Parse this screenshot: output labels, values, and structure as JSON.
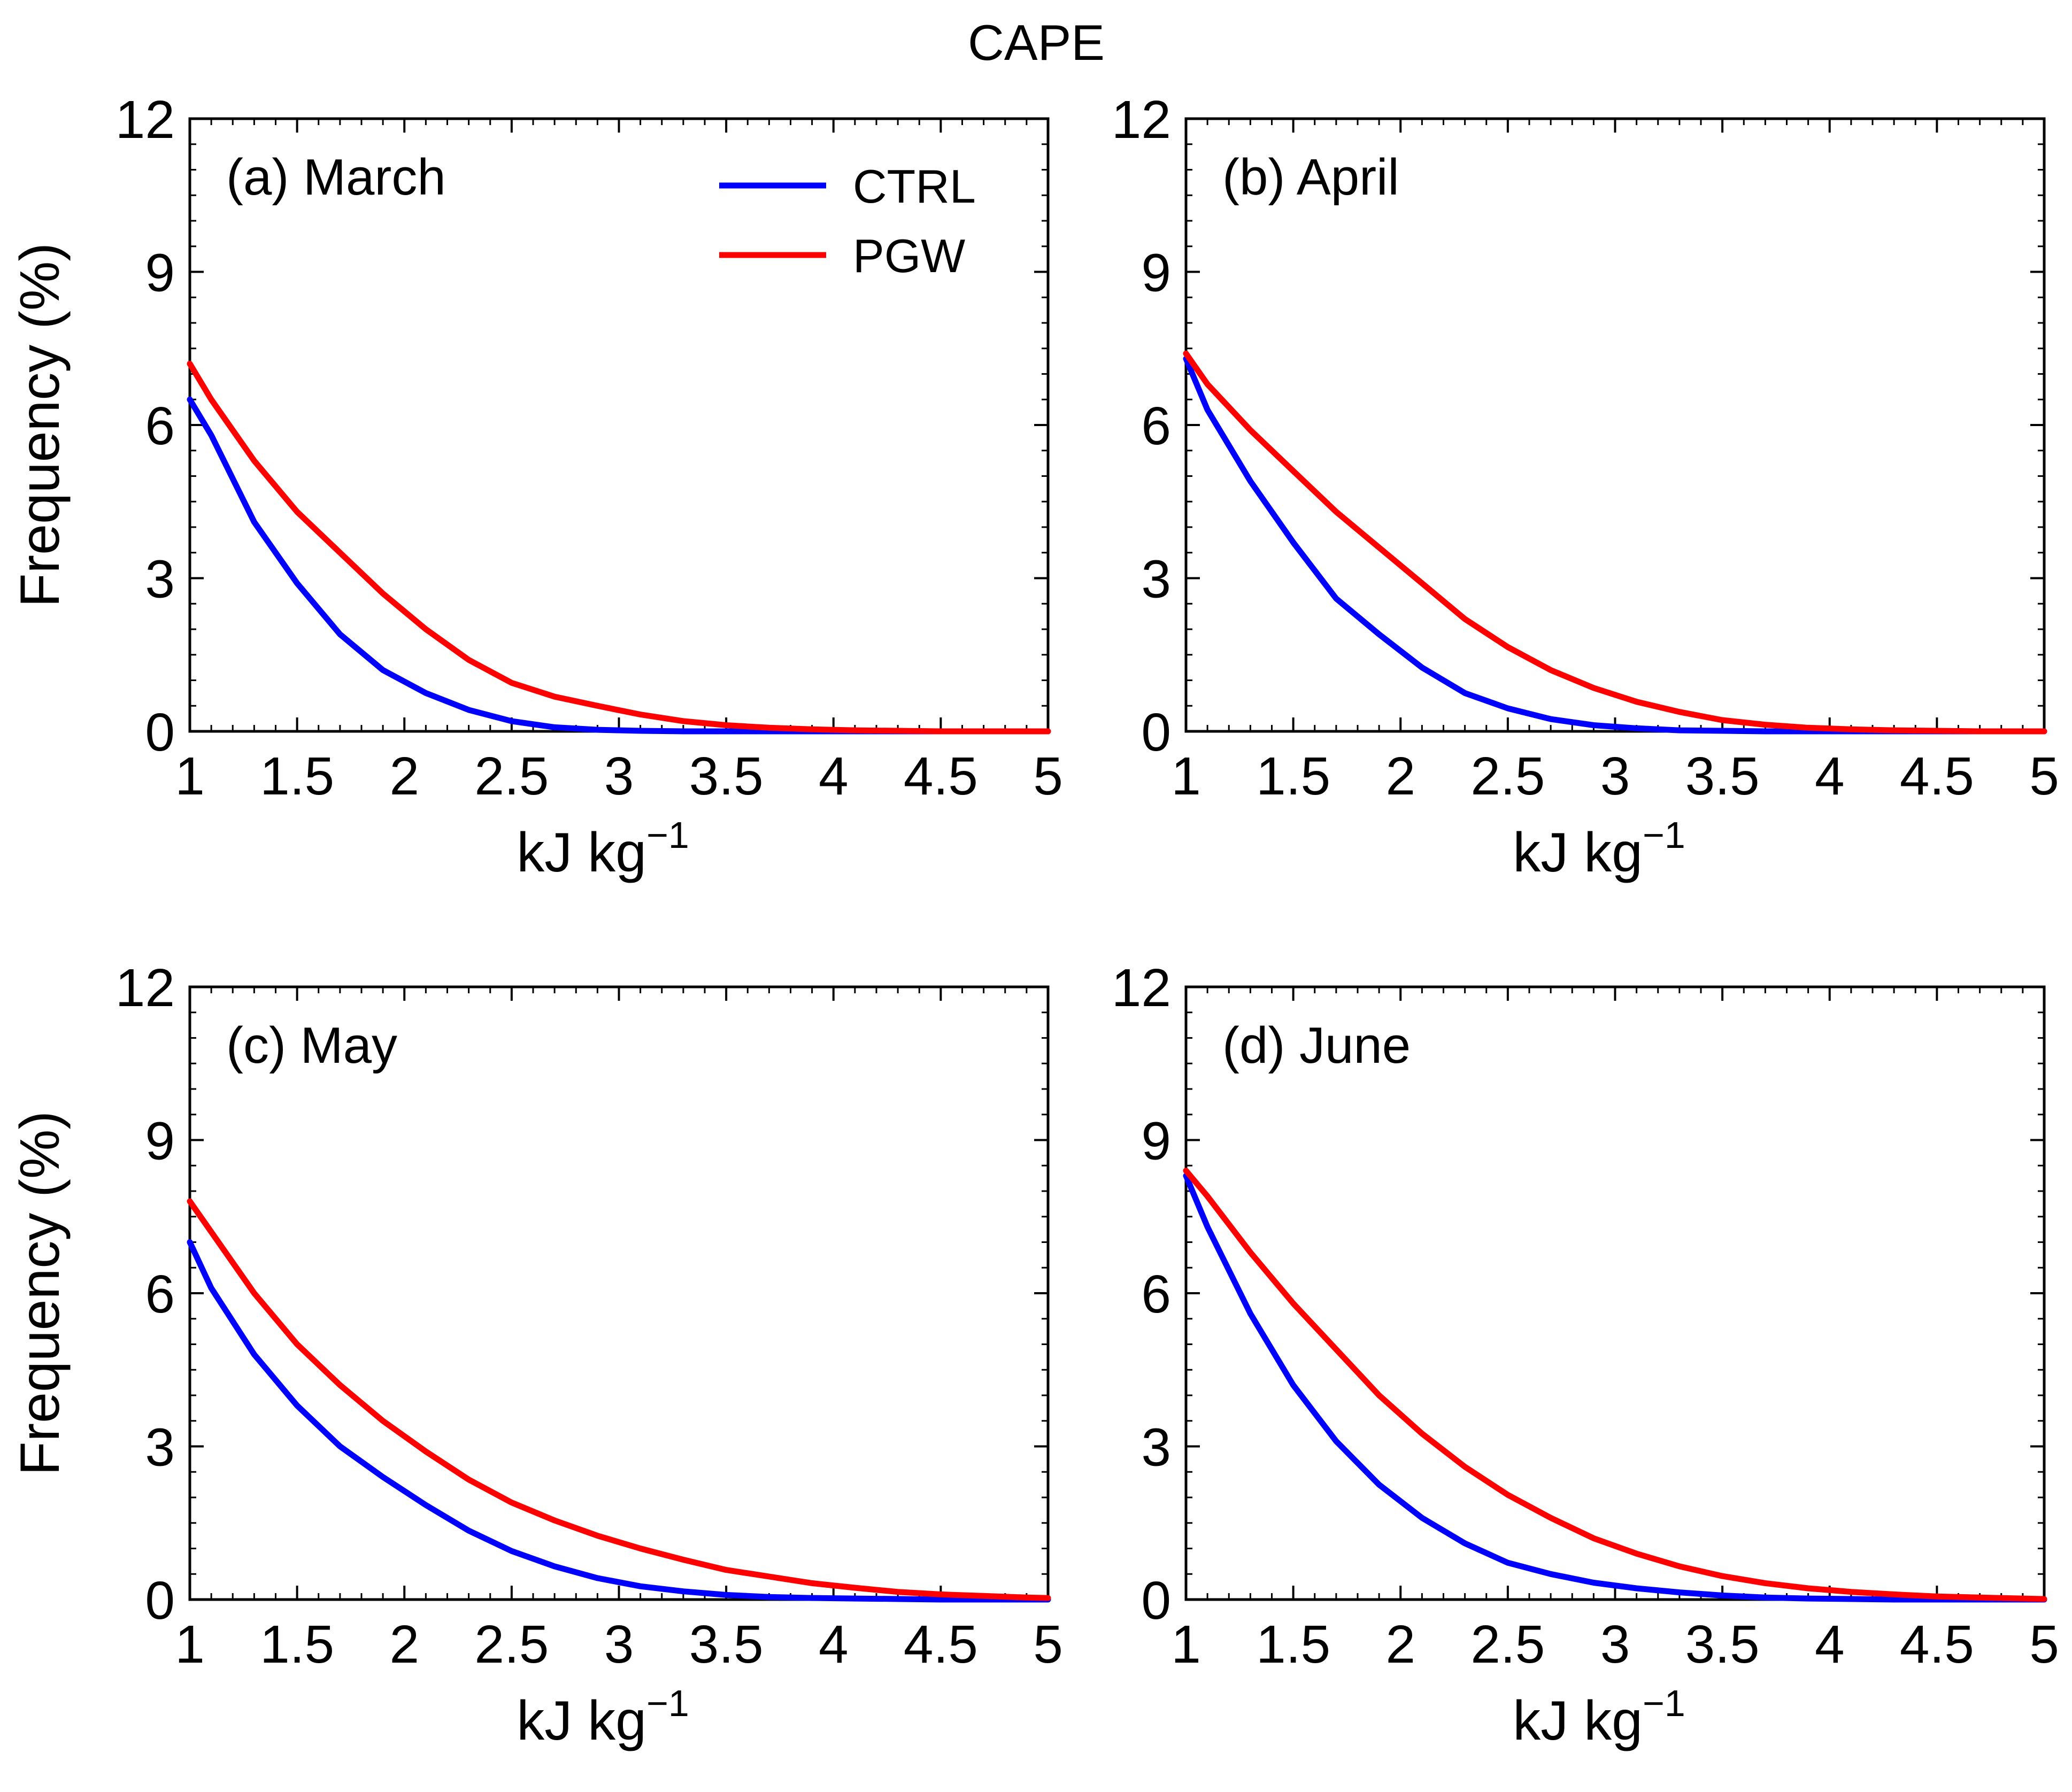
{
  "title": "CAPE",
  "colors": {
    "CTRL": "#0000ff",
    "PGW": "#ff0000",
    "axis": "#000000"
  },
  "chart_data": [
    {
      "type": "line",
      "panel": "(a) March",
      "xlabel": "kJ kg",
      "xlabel_exponent": "−1",
      "ylabel": "Frequency (%)",
      "xlim": [
        1,
        5
      ],
      "ylim": [
        0,
        12
      ],
      "xticks": [
        "1",
        "1.5",
        "2",
        "2.5",
        "3",
        "3.5",
        "4",
        "4.5",
        "5"
      ],
      "yticks": [
        "0",
        "3",
        "6",
        "9",
        "12"
      ],
      "x": [
        1.0,
        1.1,
        1.3,
        1.5,
        1.7,
        1.9,
        2.1,
        2.3,
        2.5,
        2.7,
        2.9,
        3.1,
        3.3,
        3.5,
        3.7,
        3.9,
        4.1,
        4.3,
        4.5,
        4.7,
        4.9,
        5.0
      ],
      "series": [
        {
          "name": "CTRL",
          "values": [
            6.5,
            5.8,
            4.1,
            2.9,
            1.9,
            1.2,
            0.75,
            0.42,
            0.2,
            0.08,
            0.03,
            0.01,
            0.0,
            0.0,
            0.0,
            0.0,
            0.0,
            0.0,
            0.0,
            0.0,
            0.0,
            0.0
          ]
        },
        {
          "name": "PGW",
          "values": [
            7.2,
            6.5,
            5.3,
            4.3,
            3.5,
            2.7,
            2.0,
            1.4,
            0.95,
            0.68,
            0.5,
            0.33,
            0.2,
            0.12,
            0.07,
            0.04,
            0.02,
            0.01,
            0.0,
            0.0,
            0.0,
            0.0
          ]
        }
      ],
      "legend": [
        "CTRL",
        "PGW"
      ]
    },
    {
      "type": "line",
      "panel": "(b) April",
      "xlabel": "kJ kg",
      "xlabel_exponent": "−1",
      "ylabel": "",
      "xlim": [
        1,
        5
      ],
      "ylim": [
        0,
        12
      ],
      "xticks": [
        "1",
        "1.5",
        "2",
        "2.5",
        "3",
        "3.5",
        "4",
        "4.5",
        "5"
      ],
      "yticks": [
        "0",
        "3",
        "6",
        "9",
        "12"
      ],
      "x": [
        1.0,
        1.1,
        1.3,
        1.5,
        1.7,
        1.9,
        2.1,
        2.3,
        2.5,
        2.7,
        2.9,
        3.1,
        3.3,
        3.5,
        3.7,
        3.9,
        4.1,
        4.3,
        4.5,
        4.7,
        4.9,
        5.0
      ],
      "series": [
        {
          "name": "CTRL",
          "values": [
            7.3,
            6.3,
            4.9,
            3.7,
            2.6,
            1.9,
            1.25,
            0.75,
            0.45,
            0.24,
            0.12,
            0.06,
            0.02,
            0.01,
            0.0,
            0.0,
            0.0,
            0.0,
            0.0,
            0.0,
            0.0,
            0.0
          ]
        },
        {
          "name": "PGW",
          "values": [
            7.4,
            6.8,
            5.9,
            5.1,
            4.3,
            3.6,
            2.9,
            2.2,
            1.65,
            1.2,
            0.85,
            0.58,
            0.38,
            0.22,
            0.13,
            0.07,
            0.04,
            0.02,
            0.01,
            0.0,
            0.0,
            0.0
          ]
        }
      ]
    },
    {
      "type": "line",
      "panel": "(c) May",
      "xlabel": "kJ kg",
      "xlabel_exponent": "−1",
      "ylabel": "Frequency (%)",
      "xlim": [
        1,
        5
      ],
      "ylim": [
        0,
        12
      ],
      "xticks": [
        "1",
        "1.5",
        "2",
        "2.5",
        "3",
        "3.5",
        "4",
        "4.5",
        "5"
      ],
      "yticks": [
        "0",
        "3",
        "6",
        "9",
        "12"
      ],
      "x": [
        1.0,
        1.1,
        1.3,
        1.5,
        1.7,
        1.9,
        2.1,
        2.3,
        2.5,
        2.7,
        2.9,
        3.1,
        3.3,
        3.5,
        3.7,
        3.9,
        4.1,
        4.3,
        4.5,
        4.7,
        4.9,
        5.0
      ],
      "series": [
        {
          "name": "CTRL",
          "values": [
            7.0,
            6.1,
            4.8,
            3.8,
            3.0,
            2.4,
            1.85,
            1.35,
            0.95,
            0.65,
            0.42,
            0.26,
            0.16,
            0.09,
            0.05,
            0.03,
            0.02,
            0.01,
            0.0,
            0.0,
            0.0,
            0.0
          ]
        },
        {
          "name": "PGW",
          "values": [
            7.8,
            7.2,
            6.0,
            5.0,
            4.2,
            3.5,
            2.9,
            2.35,
            1.9,
            1.55,
            1.25,
            1.0,
            0.78,
            0.58,
            0.45,
            0.32,
            0.23,
            0.15,
            0.1,
            0.07,
            0.04,
            0.03
          ]
        }
      ]
    },
    {
      "type": "line",
      "panel": "(d) June",
      "xlabel": "kJ kg",
      "xlabel_exponent": "−1",
      "ylabel": "",
      "xlim": [
        1,
        5
      ],
      "ylim": [
        0,
        12
      ],
      "xticks": [
        "1",
        "1.5",
        "2",
        "2.5",
        "3",
        "3.5",
        "4",
        "4.5",
        "5"
      ],
      "yticks": [
        "0",
        "3",
        "6",
        "9",
        "12"
      ],
      "x": [
        1.0,
        1.1,
        1.3,
        1.5,
        1.7,
        1.9,
        2.1,
        2.3,
        2.5,
        2.7,
        2.9,
        3.1,
        3.3,
        3.5,
        3.7,
        3.9,
        4.1,
        4.3,
        4.5,
        4.7,
        4.9,
        5.0
      ],
      "series": [
        {
          "name": "CTRL",
          "values": [
            8.3,
            7.3,
            5.6,
            4.2,
            3.1,
            2.25,
            1.6,
            1.1,
            0.72,
            0.5,
            0.33,
            0.22,
            0.14,
            0.08,
            0.04,
            0.02,
            0.01,
            0.0,
            0.0,
            0.0,
            0.0,
            0.0
          ]
        },
        {
          "name": "PGW",
          "values": [
            8.4,
            7.9,
            6.8,
            5.8,
            4.9,
            4.0,
            3.25,
            2.6,
            2.05,
            1.6,
            1.2,
            0.9,
            0.65,
            0.46,
            0.32,
            0.22,
            0.15,
            0.1,
            0.06,
            0.04,
            0.02,
            0.01
          ]
        }
      ]
    }
  ]
}
